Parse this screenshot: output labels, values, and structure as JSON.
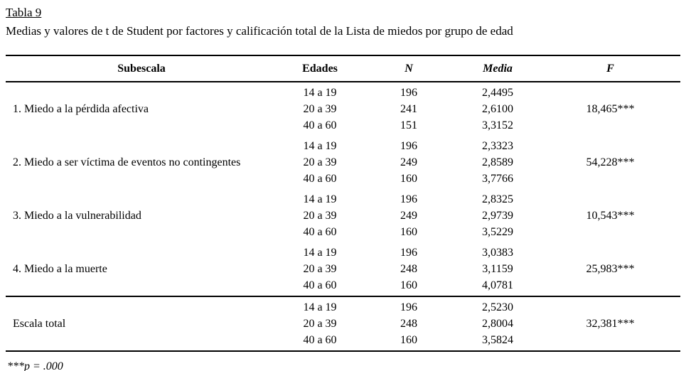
{
  "page": {
    "title": "Tabla 9",
    "subtitle": "Medias y valores de t de Student por factores y calificación total de la Lista de miedos por grupo de edad",
    "footnote": "***p = .000"
  },
  "table": {
    "headers": {
      "subescala": "Subescala",
      "edades": "Edades",
      "n": "N",
      "media": "Media",
      "f": "F"
    },
    "groups": [
      {
        "label": "1. Miedo a la pérdida afectiva",
        "f": "18,465***",
        "rows": [
          {
            "edad": "14 a 19",
            "n": "196",
            "media": "2,4495"
          },
          {
            "edad": "20 a 39",
            "n": "241",
            "media": "2,6100"
          },
          {
            "edad": "40 a 60",
            "n": "151",
            "media": "3,3152"
          }
        ]
      },
      {
        "label": "2. Miedo a ser víctima de eventos no contingentes",
        "f": "54,228***",
        "rows": [
          {
            "edad": "14 a 19",
            "n": "196",
            "media": "2,3323"
          },
          {
            "edad": "20 a 39",
            "n": "249",
            "media": "2,8589"
          },
          {
            "edad": "40 a 60",
            "n": "160",
            "media": "3,7766"
          }
        ]
      },
      {
        "label": "3. Miedo a la vulnerabilidad",
        "f": "10,543***",
        "rows": [
          {
            "edad": "14 a 19",
            "n": "196",
            "media": "2,8325"
          },
          {
            "edad": "20 a 39",
            "n": "249",
            "media": "2,9739"
          },
          {
            "edad": "40 a 60",
            "n": "160",
            "media": "3,5229"
          }
        ]
      },
      {
        "label": "4. Miedo a la muerte",
        "f": "25,983***",
        "rows": [
          {
            "edad": "14 a 19",
            "n": "196",
            "media": "3,0383"
          },
          {
            "edad": "20 a 39",
            "n": "248",
            "media": "3,1159"
          },
          {
            "edad": "40 a 60",
            "n": "160",
            "media": "4,0781"
          }
        ]
      },
      {
        "label": "Escala total",
        "f": "32,381***",
        "rows": [
          {
            "edad": "14 a 19",
            "n": "196",
            "media": "2,5230"
          },
          {
            "edad": "20 a 39",
            "n": "248",
            "media": "2,8004"
          },
          {
            "edad": "40 a 60",
            "n": "160",
            "media": "3,5824"
          }
        ]
      }
    ]
  }
}
